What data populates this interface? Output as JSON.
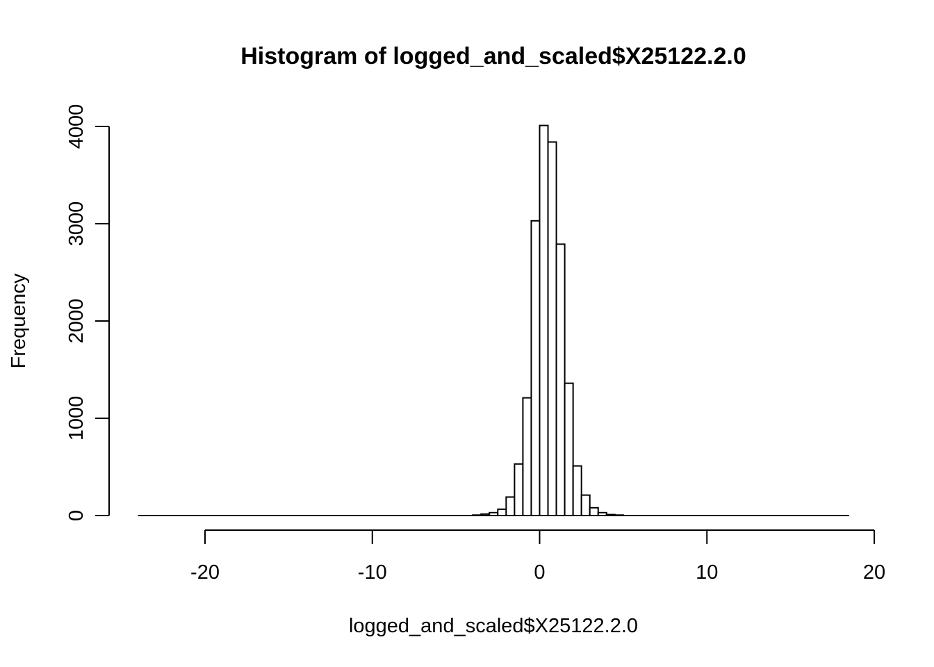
{
  "chart_data": {
    "type": "bar",
    "title": "Histogram of logged_and_scaled$X25122.2.0",
    "xlabel": "logged_and_scaled$X25122.2.0",
    "ylabel": "Frequency",
    "xlim": [
      -24,
      18.5
    ],
    "ylim": [
      0,
      4000
    ],
    "xticks": [
      -20,
      -10,
      0,
      10,
      20
    ],
    "yticks": [
      0,
      1000,
      2000,
      3000,
      4000
    ],
    "xtick_labels": [
      "-20",
      "-10",
      "0",
      "10",
      "20"
    ],
    "ytick_labels": [
      "0",
      "1000",
      "2000",
      "3000",
      "4000"
    ],
    "bin_width": 0.5,
    "bins_start": [
      -4,
      -3.5,
      -3,
      -2.5,
      -2,
      -1.5,
      -1,
      -0.5,
      0,
      0.5,
      1,
      1.5,
      2,
      2.5,
      3,
      3.5,
      4,
      4.5
    ],
    "values": [
      5,
      15,
      30,
      65,
      190,
      530,
      1210,
      3030,
      4010,
      3840,
      2790,
      1360,
      510,
      210,
      80,
      30,
      10,
      5
    ],
    "baseline_range": [
      -24,
      18.5
    ],
    "grid": false,
    "legend": "none"
  }
}
